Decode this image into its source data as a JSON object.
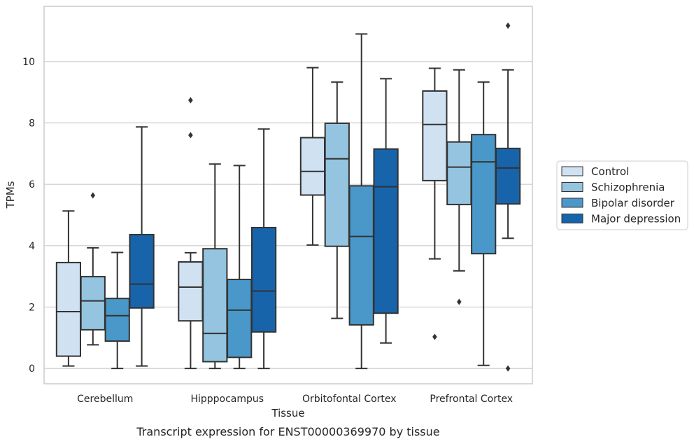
{
  "chart_data": {
    "type": "box",
    "caption": "Transcript expression for ENST00000369970 by tissue",
    "xlabel": "Tissue",
    "ylabel": "TPMs",
    "ylim": [
      -0.5,
      11.8
    ],
    "yticks": [
      0,
      2,
      4,
      6,
      8,
      10
    ],
    "grid": true,
    "legend_position": "right",
    "categories": [
      "Cerebellum",
      "Hipppocampus",
      "Orbitofontal Cortex",
      "Prefrontal Cortex"
    ],
    "series": [
      {
        "name": "Control",
        "color": "#d0e1f2",
        "boxes": [
          {
            "whislo": 0.08,
            "q1": 0.4,
            "med": 1.85,
            "q3": 3.45,
            "whishi": 5.13,
            "fliers": []
          },
          {
            "whislo": 0.0,
            "q1": 1.55,
            "med": 2.65,
            "q3": 3.47,
            "whishi": 3.77,
            "fliers": [
              7.6,
              8.74
            ]
          },
          {
            "whislo": 4.02,
            "q1": 5.65,
            "med": 6.42,
            "q3": 7.52,
            "whishi": 9.8,
            "fliers": []
          },
          {
            "whislo": 3.57,
            "q1": 6.12,
            "med": 7.95,
            "q3": 9.04,
            "whishi": 9.78,
            "fliers": [
              1.03
            ]
          }
        ]
      },
      {
        "name": "Schizophrenia",
        "color": "#94c4df",
        "boxes": [
          {
            "whislo": 0.77,
            "q1": 1.26,
            "med": 2.2,
            "q3": 2.99,
            "whishi": 3.93,
            "fliers": [
              5.64
            ]
          },
          {
            "whislo": 0.0,
            "q1": 0.22,
            "med": 1.14,
            "q3": 3.9,
            "whishi": 6.66,
            "fliers": []
          },
          {
            "whislo": 1.63,
            "q1": 3.98,
            "med": 6.83,
            "q3": 7.99,
            "whishi": 9.33,
            "fliers": []
          },
          {
            "whislo": 3.18,
            "q1": 5.34,
            "med": 6.56,
            "q3": 7.38,
            "whishi": 9.73,
            "fliers": [
              2.17
            ]
          }
        ]
      },
      {
        "name": "Bipolar disorder",
        "color": "#4a98c9",
        "boxes": [
          {
            "whislo": 0.0,
            "q1": 0.89,
            "med": 1.72,
            "q3": 2.28,
            "whishi": 3.78,
            "fliers": []
          },
          {
            "whislo": 0.0,
            "q1": 0.36,
            "med": 1.9,
            "q3": 2.9,
            "whishi": 6.61,
            "fliers": []
          },
          {
            "whislo": 0.0,
            "q1": 1.42,
            "med": 4.3,
            "q3": 5.95,
            "whishi": 10.9,
            "fliers": []
          },
          {
            "whislo": 0.1,
            "q1": 3.74,
            "med": 6.73,
            "q3": 7.62,
            "whishi": 9.33,
            "fliers": []
          }
        ]
      },
      {
        "name": "Major depression",
        "color": "#1764ab",
        "boxes": [
          {
            "whislo": 0.08,
            "q1": 1.97,
            "med": 2.75,
            "q3": 4.36,
            "whishi": 7.87,
            "fliers": []
          },
          {
            "whislo": 0.0,
            "q1": 1.19,
            "med": 2.52,
            "q3": 4.59,
            "whishi": 7.8,
            "fliers": []
          },
          {
            "whislo": 0.83,
            "q1": 1.8,
            "med": 5.92,
            "q3": 7.15,
            "whishi": 9.44,
            "fliers": []
          },
          {
            "whislo": 4.24,
            "q1": 5.36,
            "med": 6.53,
            "q3": 7.17,
            "whishi": 9.73,
            "fliers": [
              0.0,
              11.17
            ]
          }
        ]
      }
    ]
  }
}
